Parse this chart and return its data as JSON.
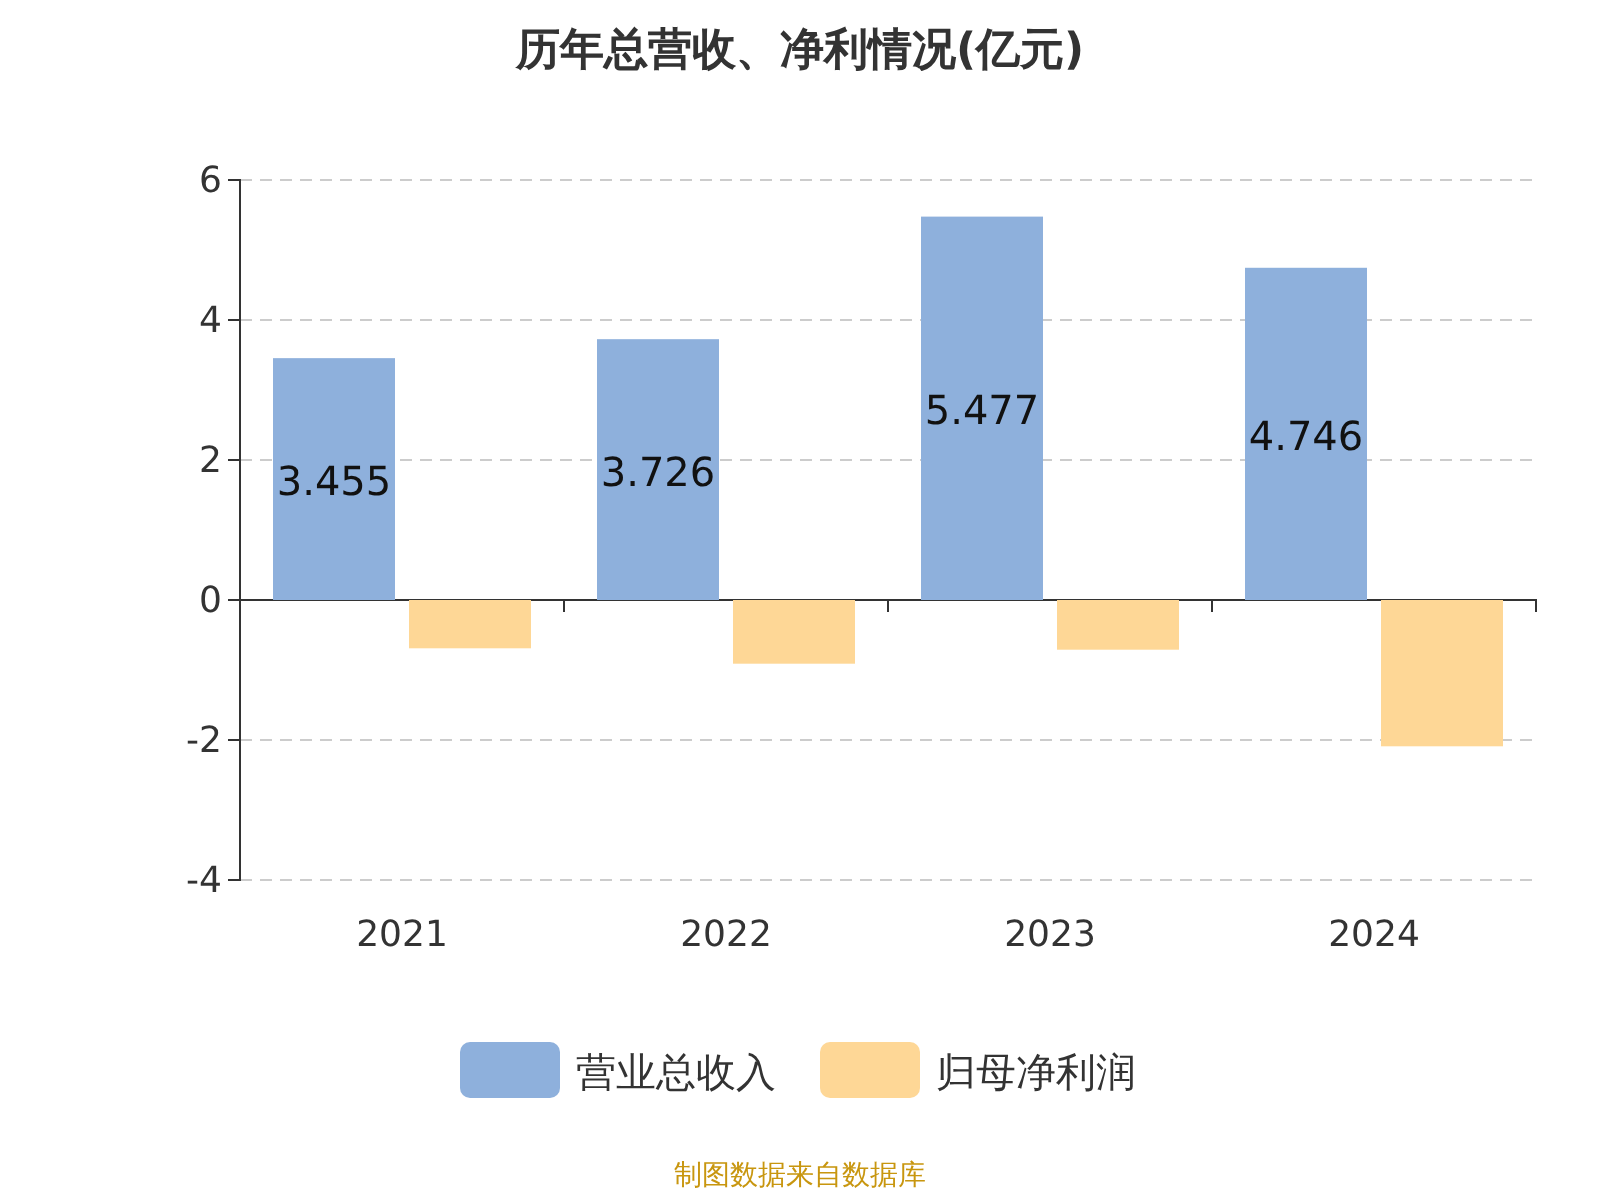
{
  "chart_data": {
    "type": "bar",
    "title": "历年总营收、净利情况(亿元)",
    "categories": [
      "2021",
      "2022",
      "2023",
      "2024"
    ],
    "series": [
      {
        "name": "营业总收入",
        "color": "#8eb0dc",
        "values": [
          3.455,
          3.726,
          5.477,
          4.746
        ],
        "value_labels": [
          "3.455",
          "3.726",
          "5.477",
          "4.746"
        ]
      },
      {
        "name": "归母净利润",
        "color": "#fed796",
        "values": [
          -0.69,
          -0.91,
          -0.71,
          -2.09
        ]
      }
    ],
    "ylim": [
      -4,
      6
    ],
    "yticks": [
      -4,
      -2,
      0,
      2,
      4,
      6
    ],
    "grid": "y",
    "legend": "bottom",
    "annotations": [
      "制图数据来自数据库"
    ]
  }
}
